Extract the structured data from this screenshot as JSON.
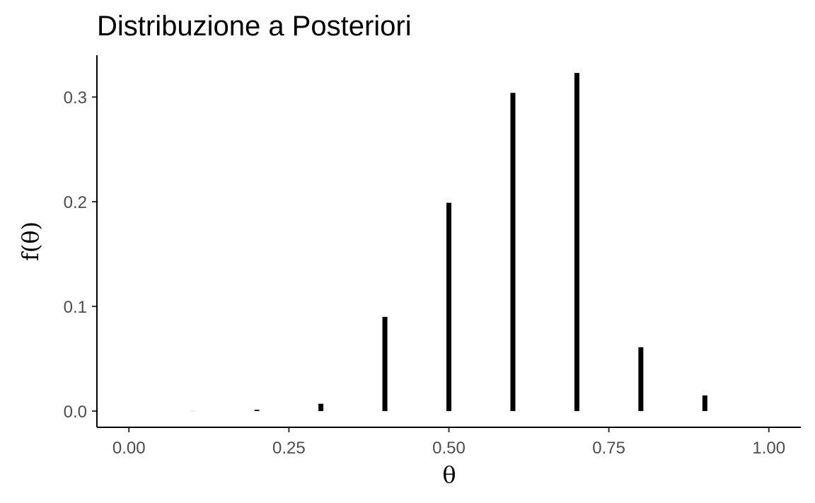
{
  "chart_data": {
    "type": "bar",
    "title": "Distribuzione a Posteriori",
    "xlabel": "θ",
    "ylabel": "f(θ)",
    "x": [
      0.0,
      0.1,
      0.2,
      0.3,
      0.4,
      0.5,
      0.6,
      0.7,
      0.8,
      0.9,
      1.0
    ],
    "values": [
      0.0,
      0.0001,
      0.0012,
      0.007,
      0.09,
      0.199,
      0.304,
      0.323,
      0.061,
      0.015,
      0.0
    ],
    "xlim": [
      -0.05,
      1.05
    ],
    "ylim": [
      -0.0155,
      0.34
    ],
    "x_ticks": [
      0.0,
      0.25,
      0.5,
      0.75,
      1.0
    ],
    "x_tick_labels": [
      "0.00",
      "0.25",
      "0.50",
      "0.75",
      "1.00"
    ],
    "y_ticks": [
      0.0,
      0.1,
      0.2,
      0.3
    ],
    "y_tick_labels": [
      "0.0",
      "0.1",
      "0.2",
      "0.3"
    ],
    "grid": false,
    "bar_color": "#000000",
    "axis_color": "#000000",
    "tick_label_color": "#4d4d4d"
  }
}
